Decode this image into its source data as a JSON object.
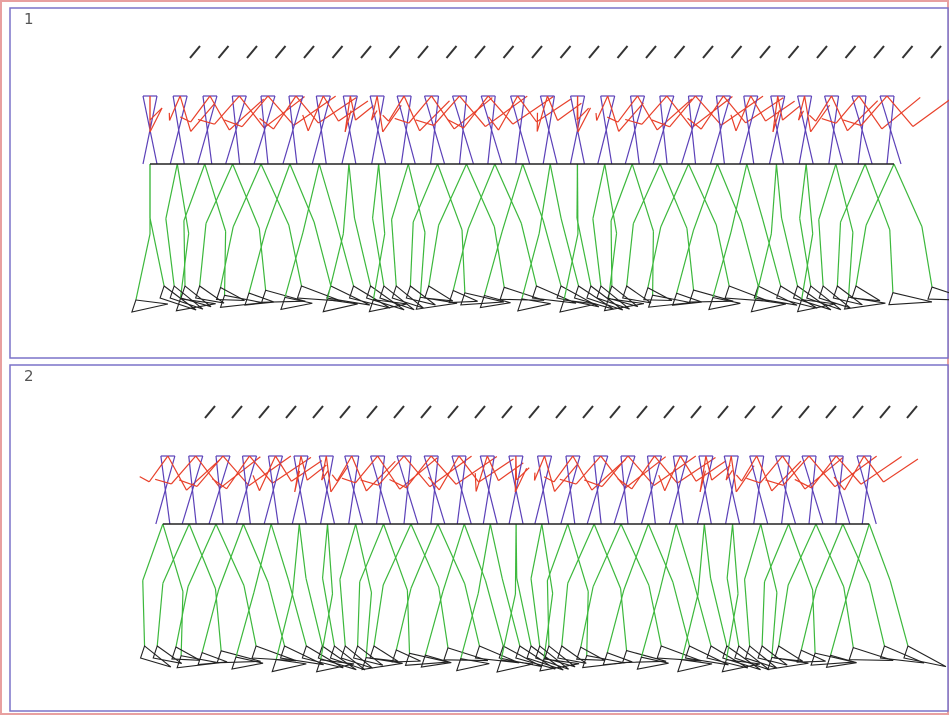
{
  "panels": [
    {
      "label": "1"
    },
    {
      "label": "2"
    }
  ]
}
